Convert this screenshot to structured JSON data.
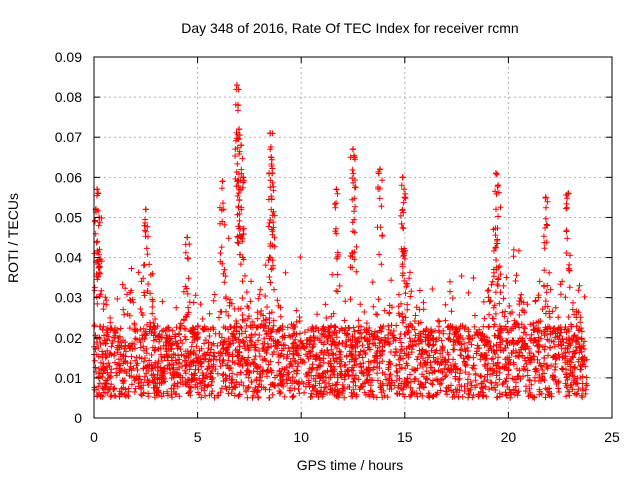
{
  "chart_data": {
    "type": "scatter",
    "title": "Day 348 of 2016, Rate Of TEC Index for receiver rcmn",
    "xlabel": "GPS time / hours",
    "ylabel": "ROTI / TECUs",
    "xlim": [
      0,
      25
    ],
    "ylim": [
      0,
      0.09
    ],
    "x_ticks": [
      0,
      5,
      10,
      15,
      20,
      25
    ],
    "y_ticks": [
      0,
      0.01,
      0.02,
      0.03,
      0.04,
      0.05,
      0.06,
      0.07,
      0.08,
      0.09
    ],
    "x_tick_labels": [
      "0",
      "5",
      "10",
      "15",
      "20",
      "25"
    ],
    "y_tick_labels": [
      "0",
      "0.01",
      "0.02",
      "0.03",
      "0.04",
      "0.05",
      "0.06",
      "0.07",
      "0.08",
      "0.09"
    ],
    "grid": true,
    "marker": "+",
    "marker_color": "#ff0000",
    "series": [
      {
        "name": "ROTI",
        "description_points": "dense scatter; baseline 0.005-0.025 over 0-23.8 h",
        "x_range": [
          0,
          23.8
        ],
        "typical_range": [
          0.005,
          0.025
        ],
        "peaks": [
          {
            "x": 0.15,
            "y": 0.057
          },
          {
            "x": 0.2,
            "y": 0.056
          },
          {
            "x": 0.25,
            "y": 0.05
          },
          {
            "x": 2.5,
            "y": 0.052
          },
          {
            "x": 4.5,
            "y": 0.045
          },
          {
            "x": 6.2,
            "y": 0.059
          },
          {
            "x": 6.9,
            "y": 0.083
          },
          {
            "x": 6.95,
            "y": 0.078
          },
          {
            "x": 7.0,
            "y": 0.072
          },
          {
            "x": 7.1,
            "y": 0.068
          },
          {
            "x": 7.2,
            "y": 0.06
          },
          {
            "x": 8.5,
            "y": 0.071
          },
          {
            "x": 8.55,
            "y": 0.065
          },
          {
            "x": 8.6,
            "y": 0.061
          },
          {
            "x": 11.7,
            "y": 0.057
          },
          {
            "x": 12.5,
            "y": 0.067
          },
          {
            "x": 12.55,
            "y": 0.065
          },
          {
            "x": 13.8,
            "y": 0.062
          },
          {
            "x": 14.9,
            "y": 0.06
          },
          {
            "x": 15.0,
            "y": 0.055
          },
          {
            "x": 19.4,
            "y": 0.061
          },
          {
            "x": 19.5,
            "y": 0.058
          },
          {
            "x": 21.8,
            "y": 0.055
          },
          {
            "x": 22.9,
            "y": 0.056
          }
        ]
      }
    ]
  }
}
